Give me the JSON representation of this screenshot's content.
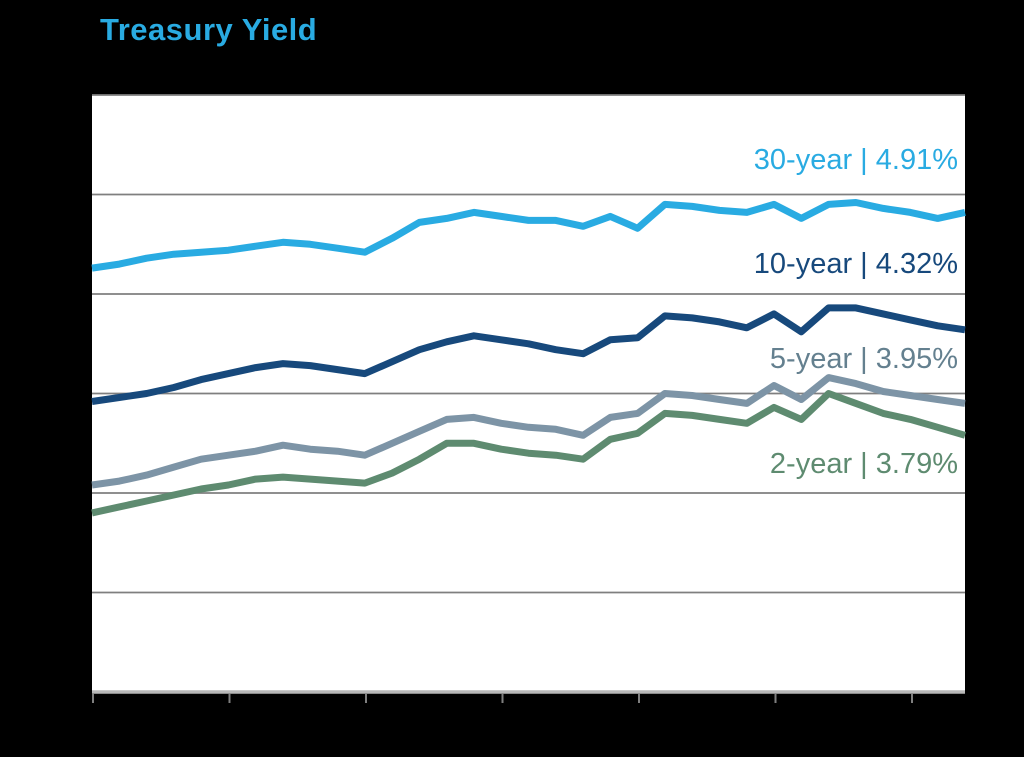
{
  "title": "Treasury Yield",
  "title_color": "#29ABE2",
  "chart_data": {
    "type": "line",
    "title": "Treasury Yield",
    "xlabel": "",
    "ylabel": "",
    "grid": true,
    "legend_position": "inline-right-of-plot",
    "background": "#ffffff",
    "page_background": "#000000",
    "gridline_color": "#7f7f7f",
    "axis_line_color": "#b8b8b8",
    "tick_color": "#7f7f7f",
    "y_axis": {
      "min": 2.5,
      "max": 5.5,
      "gridline_step": 0.5,
      "unit": "%",
      "tick_labels_visible": false
    },
    "x_axis": {
      "tick_count": 7,
      "tick_labels_visible": false
    },
    "series": [
      {
        "name": "30-year",
        "label": "30-year | 4.91%",
        "last_value": 4.91,
        "color": "#29ABE2",
        "label_color": "#29ABE2",
        "values": [
          4.63,
          4.65,
          4.68,
          4.7,
          4.71,
          4.72,
          4.74,
          4.76,
          4.75,
          4.73,
          4.71,
          4.78,
          4.86,
          4.88,
          4.91,
          4.89,
          4.87,
          4.87,
          4.84,
          4.89,
          4.83,
          4.95,
          4.94,
          4.92,
          4.91,
          4.95,
          4.88,
          4.95,
          4.96,
          4.93,
          4.91,
          4.88,
          4.91
        ]
      },
      {
        "name": "10-year",
        "label": "10-year | 4.32%",
        "last_value": 4.32,
        "color": "#17497C",
        "label_color": "#17497C",
        "values": [
          3.96,
          3.98,
          4.0,
          4.03,
          4.07,
          4.1,
          4.13,
          4.15,
          4.14,
          4.12,
          4.1,
          4.16,
          4.22,
          4.26,
          4.29,
          4.27,
          4.25,
          4.22,
          4.2,
          4.27,
          4.28,
          4.39,
          4.38,
          4.36,
          4.33,
          4.4,
          4.31,
          4.43,
          4.43,
          4.4,
          4.37,
          4.34,
          4.32
        ]
      },
      {
        "name": "5-year",
        "label": "5-year | 3.95%",
        "last_value": 3.95,
        "color": "#7D94A6",
        "label_color": "#64808F",
        "values": [
          3.54,
          3.56,
          3.59,
          3.63,
          3.67,
          3.69,
          3.71,
          3.74,
          3.72,
          3.71,
          3.69,
          3.75,
          3.81,
          3.87,
          3.88,
          3.85,
          3.83,
          3.82,
          3.79,
          3.88,
          3.9,
          4.0,
          3.99,
          3.97,
          3.95,
          4.04,
          3.97,
          4.08,
          4.05,
          4.01,
          3.99,
          3.97,
          3.95
        ]
      },
      {
        "name": "2-year",
        "label": "2-year | 3.79%",
        "last_value": 3.79,
        "color": "#5E8B70",
        "label_color": "#5E8B70",
        "values": [
          3.4,
          3.43,
          3.46,
          3.49,
          3.52,
          3.54,
          3.57,
          3.58,
          3.57,
          3.56,
          3.55,
          3.6,
          3.67,
          3.75,
          3.75,
          3.72,
          3.7,
          3.69,
          3.67,
          3.77,
          3.8,
          3.9,
          3.89,
          3.87,
          3.85,
          3.93,
          3.87,
          4.0,
          3.95,
          3.9,
          3.87,
          3.83,
          3.79
        ]
      }
    ]
  }
}
